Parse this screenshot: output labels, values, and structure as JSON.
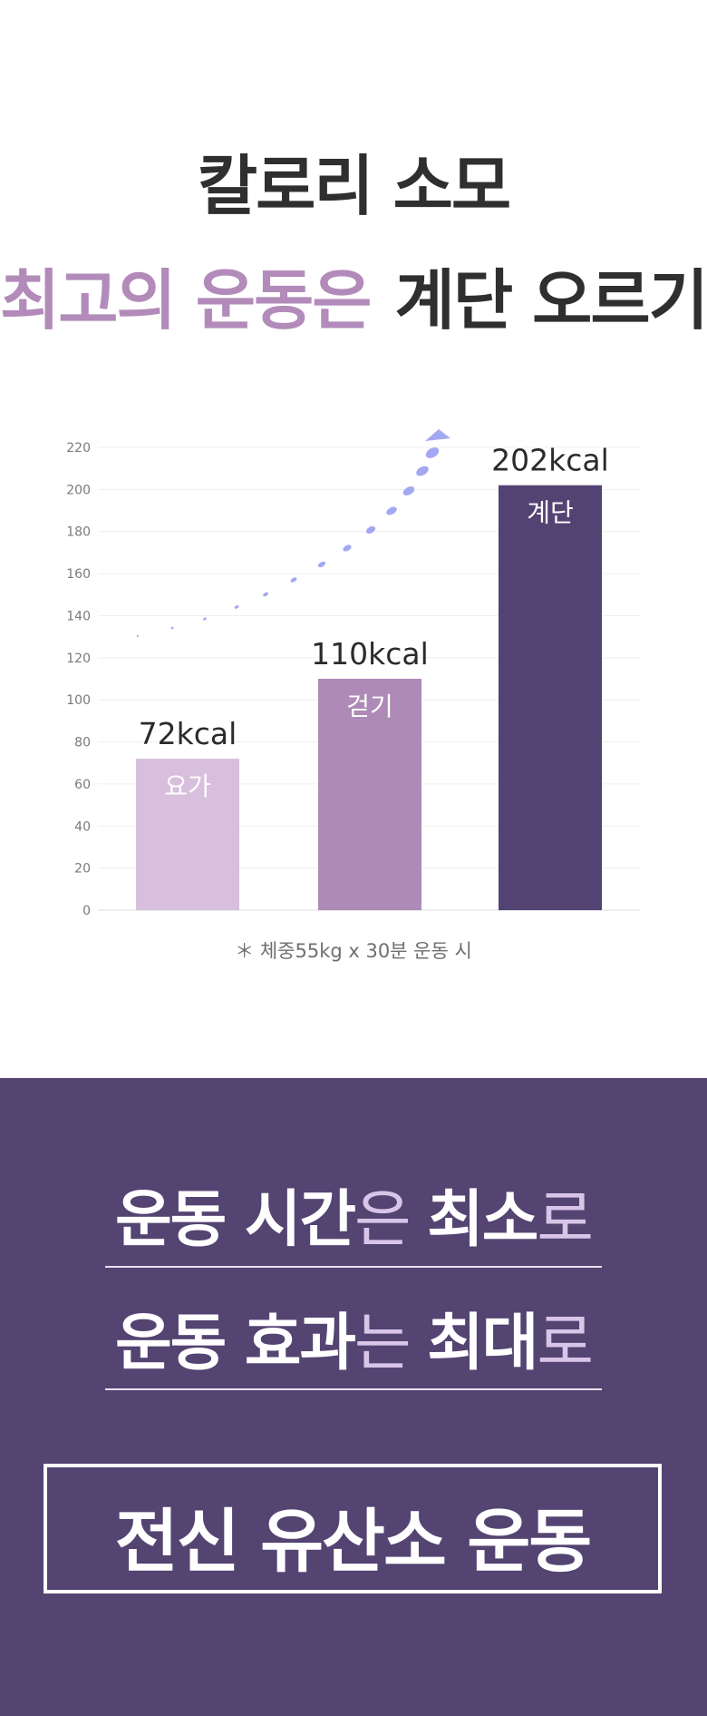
{
  "headline": {
    "line1": "칼로리 소모",
    "line2_part1": "최고의 운동은",
    "line2_part2": "계단 오르기"
  },
  "colors": {
    "headline_dark": "#2f2f2f",
    "headline_purple": "#b28bba",
    "highlight": "#f1e8f0",
    "bar_yoga": "#d7bfdd",
    "bar_walk": "#ae8ab7",
    "bar_stairs": "#534373",
    "arrow": "#a3a8f2",
    "panel_bg": "#544472"
  },
  "chart_data": {
    "type": "bar",
    "categories": [
      "요가",
      "걷기",
      "계단"
    ],
    "values": [
      72,
      110,
      202
    ],
    "value_labels": [
      "72kcal",
      "110kcal",
      "202kcal"
    ],
    "yticks": [
      0,
      20,
      40,
      60,
      80,
      100,
      120,
      140,
      160,
      180,
      200,
      220
    ],
    "ylim": [
      0,
      220
    ],
    "grid": true,
    "note": "＊ 체중55kg x 30분 운동 시"
  },
  "bottom": {
    "line1": {
      "a": "운동 시간",
      "b": "은 ",
      "c": "최소",
      "d": "로"
    },
    "line2": {
      "a": "운동 효과",
      "b": "는 ",
      "c": "최대",
      "d": "로"
    },
    "box_text": "전신 유산소 운동"
  }
}
